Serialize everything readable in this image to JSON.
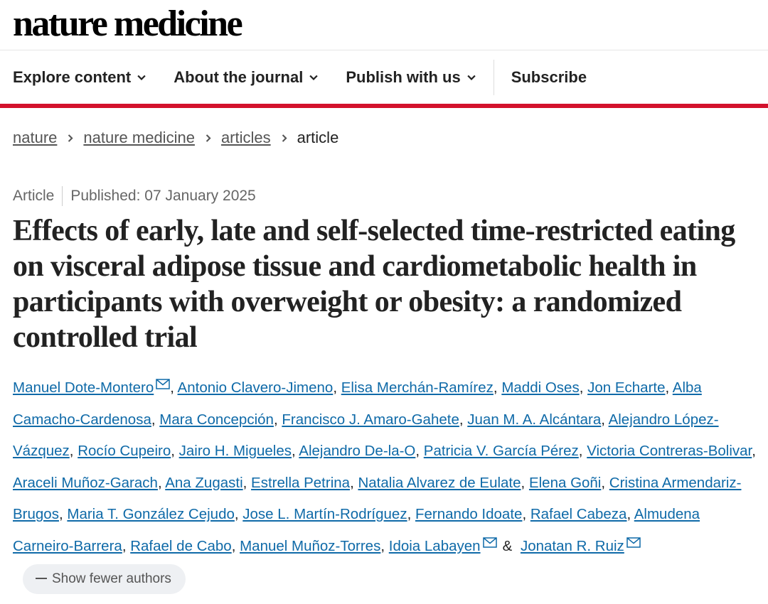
{
  "header": {
    "logo": "nature medicine",
    "nav": [
      {
        "label": "Explore content",
        "dropdown": true
      },
      {
        "label": "About the journal",
        "dropdown": true
      },
      {
        "label": "Publish with us",
        "dropdown": true
      },
      {
        "label": "Subscribe"
      }
    ]
  },
  "breadcrumb": {
    "links": [
      "nature",
      "nature medicine",
      "articles"
    ],
    "current": "article"
  },
  "article": {
    "type": "Article",
    "published_label": "Published:",
    "published_date": "07 January 2025",
    "title": "Effects of early, late and self-selected time-restricted eating on visceral adipose tissue and cardiometabolic health in participants with overweight or obesity: a randomized controlled trial",
    "authors": [
      {
        "name": "Manuel Dote-Montero",
        "email": true,
        "separator": ","
      },
      {
        "name": "Antonio Clavero-Jimeno",
        "separator": ","
      },
      {
        "name": "Elisa Merchán-Ramírez",
        "separator": ","
      },
      {
        "name": "Maddi Oses",
        "separator": ","
      },
      {
        "name": "Jon Echarte",
        "separator": ","
      },
      {
        "name": "Alba Camacho-Cardenosa",
        "separator": ","
      },
      {
        "name": "Mara Concepción",
        "separator": ","
      },
      {
        "name": "Francisco J. Amaro-Gahete",
        "separator": ","
      },
      {
        "name": "Juan M. A. Alcántara",
        "separator": ","
      },
      {
        "name": "Alejandro López-Vázquez",
        "separator": ","
      },
      {
        "name": "Rocío Cupeiro",
        "separator": ","
      },
      {
        "name": "Jairo H. Migueles",
        "separator": ","
      },
      {
        "name": "Alejandro De-la-O",
        "separator": ","
      },
      {
        "name": "Patricia V. García Pérez",
        "separator": ","
      },
      {
        "name": "Victoria Contreras-Bolivar",
        "separator": ","
      },
      {
        "name": "Araceli Muñoz-Garach",
        "separator": ","
      },
      {
        "name": "Ana Zugasti",
        "separator": ","
      },
      {
        "name": "Estrella Petrina",
        "separator": ","
      },
      {
        "name": "Natalia Alvarez de Eulate",
        "separator": ","
      },
      {
        "name": "Elena Goñi",
        "separator": ","
      },
      {
        "name": "Cristina Armendariz-Brugos",
        "separator": ","
      },
      {
        "name": "Maria T. González Cejudo",
        "separator": ","
      },
      {
        "name": "Jose L. Martín-Rodríguez",
        "separator": ","
      },
      {
        "name": "Fernando Idoate",
        "separator": ","
      },
      {
        "name": "Rafael Cabeza",
        "separator": ","
      },
      {
        "name": "Almudena Carneiro-Barrera",
        "separator": ","
      },
      {
        "name": "Rafael de Cabo",
        "separator": ","
      },
      {
        "name": "Manuel Muñoz-Torres",
        "separator": ","
      },
      {
        "name": "Idoia Labayen",
        "email": true,
        "separator": "&"
      },
      {
        "name": "Jonatan R. Ruiz",
        "email": true
      }
    ],
    "toggle_authors": "Show fewer authors"
  }
}
